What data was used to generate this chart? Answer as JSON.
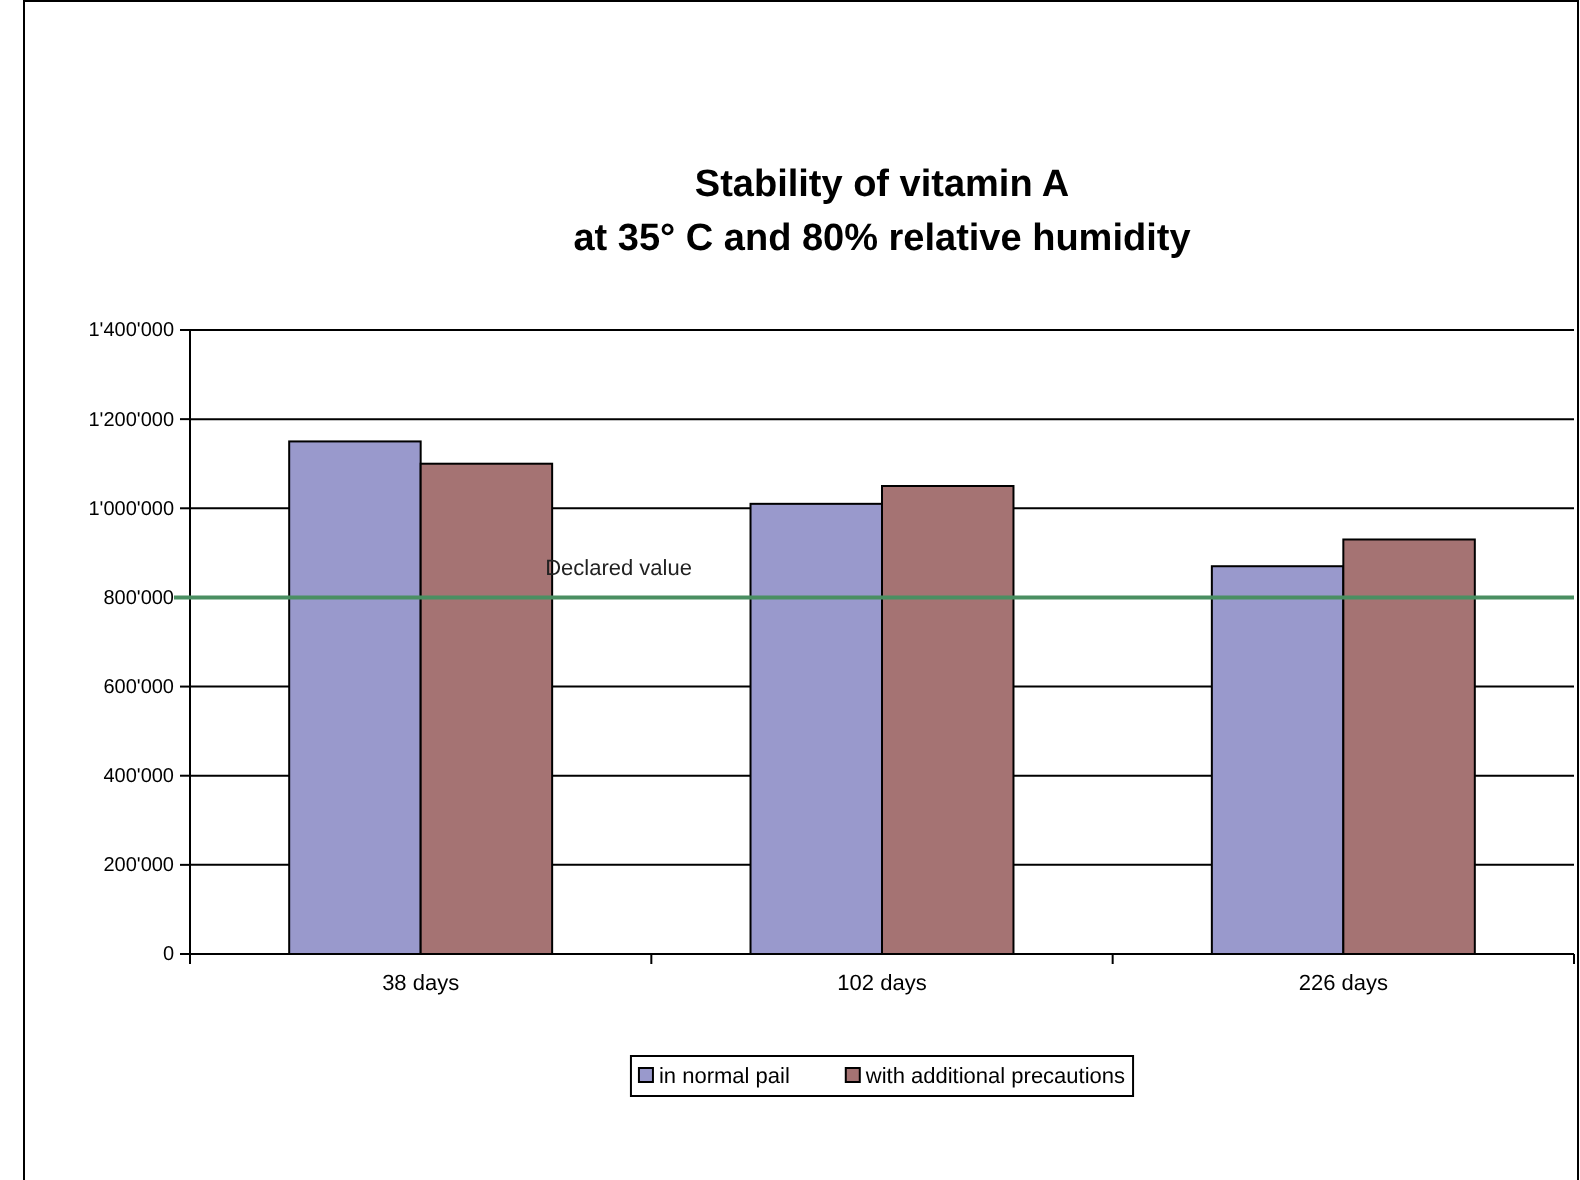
{
  "chart_data": {
    "type": "bar",
    "title": "Stability of vitamin A\nat 35° C and 80% relative humidity",
    "categories": [
      "38 days",
      "102 days",
      "226 days"
    ],
    "series": [
      {
        "name": "in normal pail",
        "color": "#9999cc",
        "values": [
          1150000,
          1010000,
          870000
        ]
      },
      {
        "name": "with additional precautions",
        "color": "#a57373",
        "values": [
          1100000,
          1050000,
          930000
        ]
      }
    ],
    "ylim": [
      0,
      1400000
    ],
    "yticks": [
      {
        "value": 0,
        "label": "0"
      },
      {
        "value": 200000,
        "label": "200'000"
      },
      {
        "value": 400000,
        "label": "400'000"
      },
      {
        "value": 600000,
        "label": "600'000"
      },
      {
        "value": 800000,
        "label": "800'000"
      },
      {
        "value": 1000000,
        "label": "1'000'000"
      },
      {
        "value": 1200000,
        "label": "1'200'000"
      },
      {
        "value": 1400000,
        "label": "1'400'000"
      }
    ],
    "grid": "y",
    "legend": "bottom",
    "ref_lines": [
      {
        "axis": "y",
        "value": 800000,
        "label": "Declared value",
        "color": "#4a8f62"
      }
    ]
  }
}
